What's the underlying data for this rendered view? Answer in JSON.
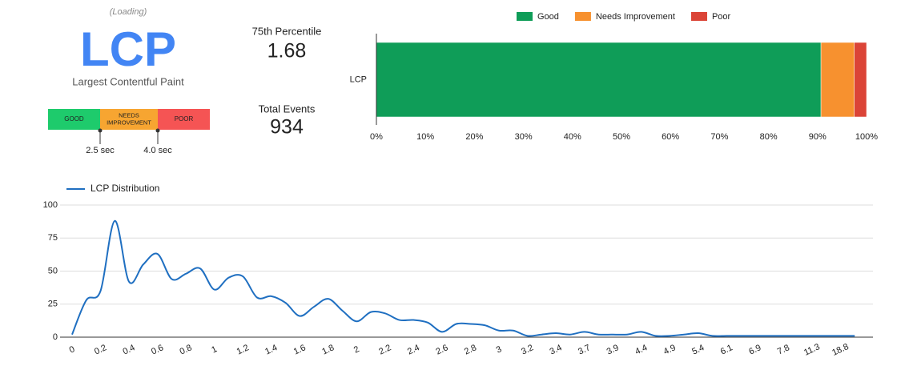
{
  "header": {
    "status": "(Loading)",
    "metric": "LCP",
    "metric_name": "Largest Contentful Paint"
  },
  "thresholds": {
    "segments": [
      "GOOD",
      "NEEDS IMPROVEMENT",
      "POOR"
    ],
    "marks": [
      "2.5 sec",
      "4.0 sec"
    ]
  },
  "stats": [
    {
      "label": "75th Percentile",
      "value": 1.68
    },
    {
      "label": "Total Events",
      "value": 934
    }
  ],
  "chart_data": [
    {
      "type": "bar",
      "orientation": "horizontal",
      "stacked": true,
      "legend": "top",
      "categories": [
        "LCP"
      ],
      "series": [
        {
          "name": "Good",
          "color": "#0f9d58",
          "values": [
            90.7
          ]
        },
        {
          "name": "Needs Improvement",
          "color": "#f7912f",
          "values": [
            6.8
          ]
        },
        {
          "name": "Poor",
          "color": "#db4437",
          "values": [
            2.5
          ]
        }
      ],
      "xlim": [
        0,
        100
      ],
      "xticks": [
        {
          "value": 0,
          "label": "0%"
        },
        {
          "value": 10,
          "label": "10%"
        },
        {
          "value": 20,
          "label": "20%"
        },
        {
          "value": 30,
          "label": "30%"
        },
        {
          "value": 40,
          "label": "40%"
        },
        {
          "value": 50,
          "label": "50%"
        },
        {
          "value": 60,
          "label": "60%"
        },
        {
          "value": 70,
          "label": "70%"
        },
        {
          "value": 80,
          "label": "80%"
        },
        {
          "value": 90,
          "label": "90%"
        },
        {
          "value": 100,
          "label": "100%"
        }
      ]
    },
    {
      "type": "line",
      "legend": "top-left",
      "grid": true,
      "smooth": true,
      "categories": [
        "0",
        null,
        "0.2",
        null,
        "0.4",
        null,
        "0.6",
        null,
        "0.8",
        null,
        "1",
        null,
        "1.2",
        null,
        "1.4",
        null,
        "1.6",
        null,
        "1.8",
        null,
        "2",
        null,
        "2.2",
        null,
        "2.4",
        null,
        "2.6",
        null,
        "2.8",
        null,
        "3",
        null,
        "3.2",
        null,
        "3.4",
        null,
        "3.7",
        null,
        "3.9",
        null,
        "4.4",
        null,
        "4.9",
        null,
        "5.4",
        null,
        "6.1",
        null,
        "6.9",
        null,
        "7.8",
        null,
        "11.3",
        null,
        "18.8",
        null
      ],
      "series": [
        {
          "name": "LCP Distribution",
          "color": "#1f6fc1",
          "values": [
            2,
            28,
            35,
            88,
            42,
            55,
            63,
            44,
            48,
            52,
            36,
            45,
            46,
            30,
            31,
            26,
            16,
            23,
            29,
            20,
            12,
            19,
            18,
            13,
            13,
            11,
            4,
            10,
            10,
            9,
            5,
            5,
            1,
            2,
            3,
            2,
            4,
            2,
            2,
            2,
            4,
            1,
            1,
            2,
            3,
            1,
            1,
            1,
            1,
            1,
            1,
            1,
            1,
            1,
            1,
            1
          ]
        }
      ],
      "ylim": [
        0,
        100
      ],
      "yticks": [
        0,
        25,
        50,
        75,
        100
      ]
    }
  ]
}
